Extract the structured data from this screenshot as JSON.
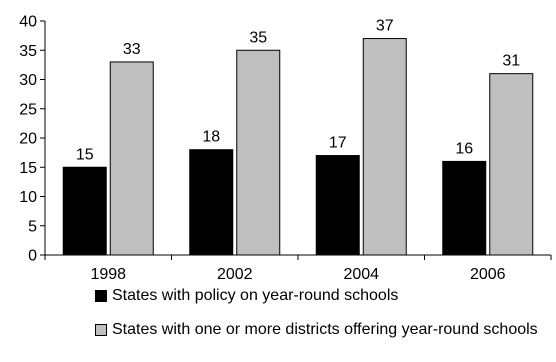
{
  "chart_data": {
    "type": "bar",
    "title": "",
    "xlabel": "",
    "ylabel": "",
    "categories": [
      "1998",
      "2002",
      "2004",
      "2006"
    ],
    "series": [
      {
        "name": "States with policy on year-round schools",
        "values": [
          15,
          18,
          17,
          16
        ],
        "color": "#000000"
      },
      {
        "name": "States with one or more districts offering year-round schools",
        "values": [
          33,
          35,
          37,
          31
        ],
        "color": "#bfbfbf"
      }
    ],
    "ylim": [
      0,
      40
    ],
    "yticks": [
      "0",
      "5",
      "10",
      "15",
      "20",
      "25",
      "30",
      "35",
      "40"
    ],
    "data_labels": [
      [
        "15",
        "18",
        "17",
        "16"
      ],
      [
        "33",
        "35",
        "37",
        "31"
      ]
    ],
    "grid": false,
    "legend_position": "bottom"
  }
}
